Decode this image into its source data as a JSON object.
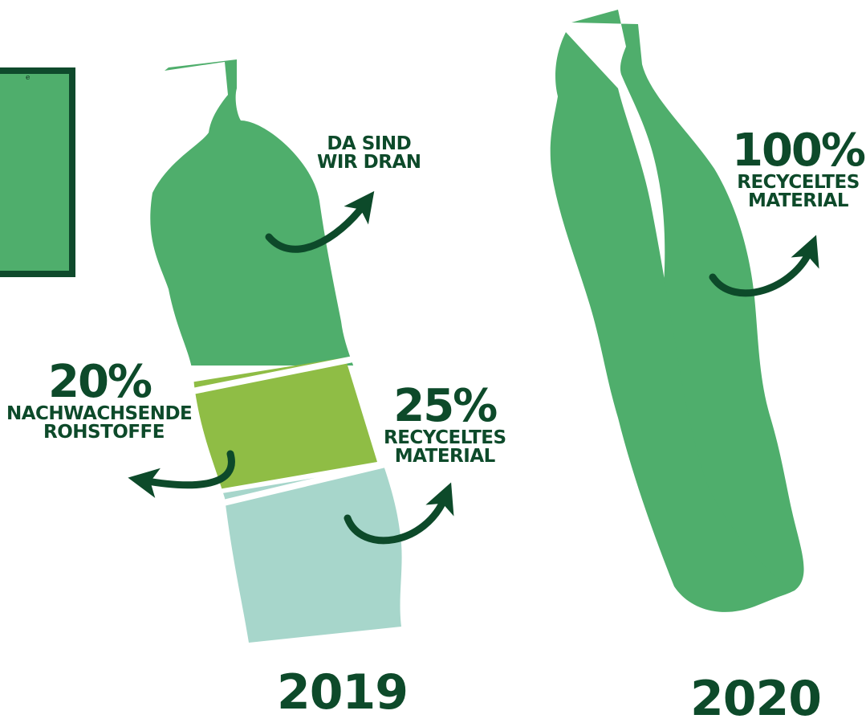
{
  "colors": {
    "bottle_main": "#4fae6c",
    "bottle_renewable": "#8fbd45",
    "bottle_recycled": "#a7d6cb",
    "text_dark": "#0d4a2a",
    "arrow": "#0d4a2a",
    "box_fill": "#4fae6c",
    "box_border": "#0f4a2c"
  },
  "left_box": {
    "text": "e"
  },
  "bottle_2019": {
    "year": "2019",
    "top_label": {
      "line1": "DA SIND",
      "line2": "WIR DRAN"
    },
    "renewable": {
      "percent": "20%",
      "line1": "NACHWACHSENDE",
      "line2": "ROHSTOFFE"
    },
    "recycled": {
      "percent": "25%",
      "line1": "RECYCELTES",
      "line2": "MATERIAL"
    }
  },
  "bottle_2020": {
    "year": "2020",
    "recycled": {
      "percent": "100%",
      "line1": "RECYCELTES",
      "line2": "MATERIAL"
    }
  }
}
